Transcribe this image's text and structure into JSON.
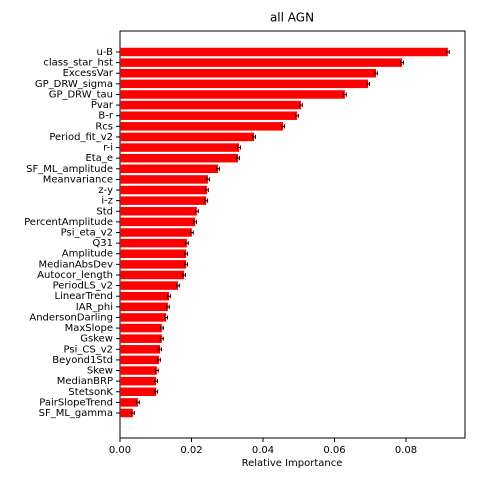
{
  "chart_data": {
    "type": "barh",
    "title": "all AGN",
    "xlabel": "Relative Importance",
    "categories": [
      "u-B",
      "class_star_hst",
      "ExcessVar",
      "GP_DRW_sigma",
      "GP_DRW_tau",
      "Pvar",
      "B-r",
      "Rcs",
      "Period_fit_v2",
      "r-i",
      "Eta_e",
      "SF_ML_amplitude",
      "Meanvariance",
      "z-y",
      "i-z",
      "Std",
      "PercentAmplitude",
      "Psi_eta_v2",
      "Q31",
      "Amplitude",
      "MedianAbsDev",
      "Autocor_length",
      "PeriodLS_v2",
      "LinearTrend",
      "IAR_phi",
      "AndersonDarling",
      "MaxSlope",
      "Gskew",
      "Psi_CS_v2",
      "Beyond1Std",
      "Skew",
      "MedianBRP",
      "StetsonK",
      "PairSlopeTrend",
      "SF_ML_gamma"
    ],
    "values": [
      0.0917,
      0.0789,
      0.0716,
      0.0694,
      0.0629,
      0.0506,
      0.0495,
      0.0456,
      0.0375,
      0.0333,
      0.033,
      0.0274,
      0.0246,
      0.0243,
      0.0241,
      0.0215,
      0.021,
      0.0201,
      0.0187,
      0.0185,
      0.0185,
      0.0179,
      0.0162,
      0.0137,
      0.0134,
      0.0129,
      0.0117,
      0.0117,
      0.0112,
      0.0109,
      0.0103,
      0.0101,
      0.0101,
      0.005,
      0.0036
    ],
    "errors": [
      0.0004,
      0.0004,
      0.0004,
      0.0004,
      0.0004,
      0.0004,
      0.0004,
      0.0004,
      0.0004,
      0.0004,
      0.0004,
      0.0004,
      0.0004,
      0.0004,
      0.0004,
      0.0004,
      0.0004,
      0.0004,
      0.0004,
      0.0004,
      0.0004,
      0.0004,
      0.0004,
      0.0004,
      0.0004,
      0.0004,
      0.0004,
      0.0004,
      0.0004,
      0.0004,
      0.0004,
      0.0004,
      0.0004,
      0.0004,
      0.0004
    ],
    "color": "#ff0000",
    "xlim": [
      0,
      0.0965
    ],
    "xticks": [
      {
        "value": 0,
        "label": "0.00"
      },
      {
        "value": 0.02,
        "label": "0.02"
      },
      {
        "value": 0.04,
        "label": "0.04"
      },
      {
        "value": 0.06,
        "label": "0.06"
      },
      {
        "value": 0.08,
        "label": "0.08"
      }
    ]
  }
}
